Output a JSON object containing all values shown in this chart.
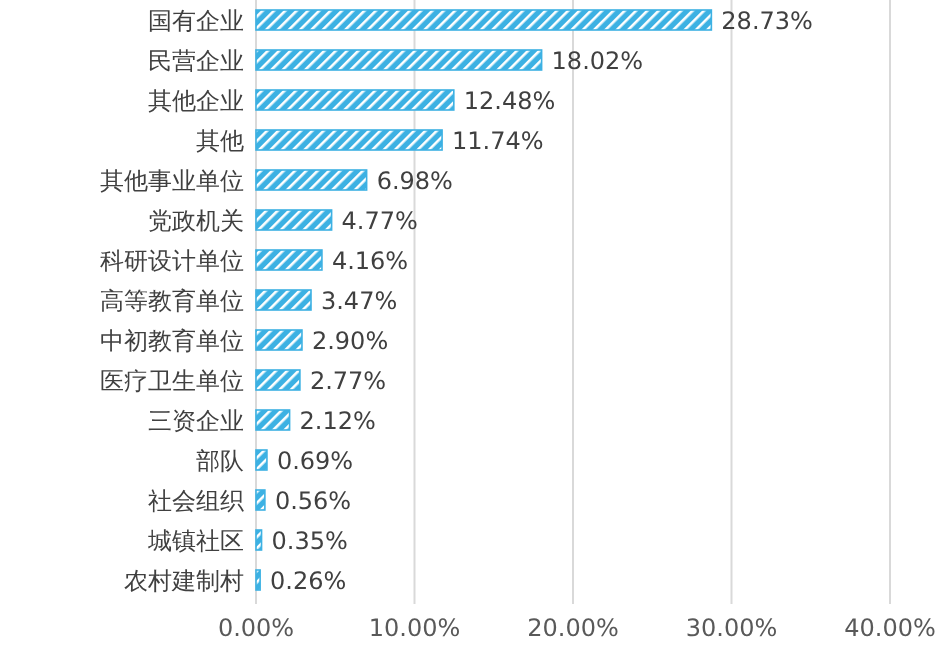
{
  "chart_data": {
    "type": "bar",
    "orientation": "horizontal",
    "categories": [
      "国有企业",
      "民营企业",
      "其他企业",
      "其他",
      "其他事业单位",
      "党政机关",
      "科研设计单位",
      "高等教育单位",
      "中初教育单位",
      "医疗卫生单位",
      "三资企业",
      "部队",
      "社会组织",
      "城镇社区",
      "农村建制村"
    ],
    "values": [
      28.73,
      18.02,
      12.48,
      11.74,
      6.98,
      4.77,
      4.16,
      3.47,
      2.9,
      2.77,
      2.12,
      0.69,
      0.56,
      0.35,
      0.26
    ],
    "value_labels": [
      "28.73%",
      "18.02%",
      "12.48%",
      "11.74%",
      "6.98%",
      "4.77%",
      "4.16%",
      "3.47%",
      "2.90%",
      "2.77%",
      "2.12%",
      "0.69%",
      "0.56%",
      "0.35%",
      "0.26%"
    ],
    "color": "#3cb1e3",
    "xlim": [
      0,
      40
    ],
    "xticks": [
      {
        "value": 0,
        "label": "0.00%"
      },
      {
        "value": 10,
        "label": "10.00%"
      },
      {
        "value": 20,
        "label": "20.00%"
      },
      {
        "value": 30,
        "label": "30.00%"
      },
      {
        "value": 40,
        "label": "40.00%"
      }
    ],
    "grid": "x"
  }
}
